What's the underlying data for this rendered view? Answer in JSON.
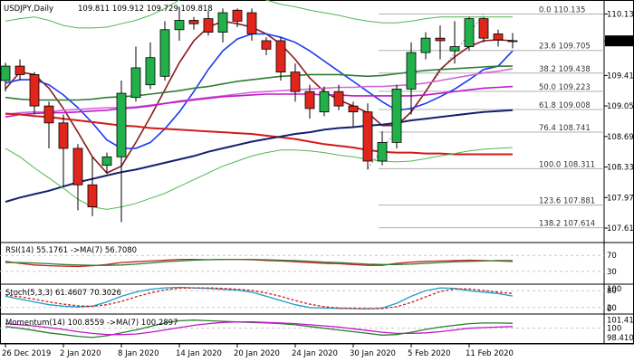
{
  "header": {
    "symbol": "USDJPY,Daily",
    "ohlc": "109.811 109.912 109.729 109.818"
  },
  "current_price": "109.818",
  "colors": {
    "bull": "#22b04b",
    "bear": "#e0251c",
    "wick": "#000000",
    "ma_blue": "#1a3cf0",
    "ma_brown": "#8b1a1a",
    "ma_green": "#2e7d32",
    "ma_navy": "#142070",
    "ma_red": "#d21a1a",
    "ma_pink": "#d06ad8",
    "ma_purple": "#c018c8",
    "bb_band": "#50b850",
    "fib_line": "#b0b0b0",
    "rsi": "#cc1f1f",
    "rsi_ma": "#2e7d32",
    "stoch_k": "#1aa0c8",
    "stoch_d": "#cc1f1f",
    "mom": "#2e7d32",
    "mom_ma": "#c018c8",
    "axis": "#000000",
    "grid": "#c8c8c8"
  },
  "chart_data": [
    {
      "type": "candlestick",
      "panel": "price",
      "ylim": [
        107.45,
        110.3
      ],
      "y_ticks": [
        "110.135",
        "109.818",
        "109.410",
        "109.050",
        "108.690",
        "108.330",
        "107.970",
        "107.610"
      ],
      "x_labels": [
        {
          "i": 0,
          "label": "26 Dec 2019"
        },
        {
          "i": 4,
          "label": "2 Jan 2020"
        },
        {
          "i": 8,
          "label": "8 Jan 2020"
        },
        {
          "i": 12,
          "label": "14 Jan 2020"
        },
        {
          "i": 16,
          "label": "20 Jan 2020"
        },
        {
          "i": 20,
          "label": "24 Jan 2020"
        },
        {
          "i": 24,
          "label": "30 Jan 2020"
        },
        {
          "i": 28,
          "label": "5 Feb 2020"
        },
        {
          "i": 32,
          "label": "11 Feb 2020"
        }
      ],
      "candles": [
        {
          "o": 109.35,
          "h": 109.56,
          "l": 109.22,
          "c": 109.52
        },
        {
          "o": 109.52,
          "h": 109.6,
          "l": 109.35,
          "c": 109.42
        },
        {
          "o": 109.42,
          "h": 109.45,
          "l": 108.95,
          "c": 109.05
        },
        {
          "o": 109.05,
          "h": 109.1,
          "l": 108.55,
          "c": 108.85
        },
        {
          "o": 108.85,
          "h": 108.95,
          "l": 108.1,
          "c": 108.55
        },
        {
          "o": 108.55,
          "h": 108.6,
          "l": 107.82,
          "c": 108.12
        },
        {
          "o": 108.12,
          "h": 108.45,
          "l": 107.75,
          "c": 107.86
        },
        {
          "o": 108.35,
          "h": 108.5,
          "l": 108.25,
          "c": 108.45
        },
        {
          "o": 108.45,
          "h": 109.35,
          "l": 107.68,
          "c": 109.2
        },
        {
          "o": 109.15,
          "h": 109.75,
          "l": 109.1,
          "c": 109.5
        },
        {
          "o": 109.3,
          "h": 109.8,
          "l": 109.25,
          "c": 109.62
        },
        {
          "o": 109.4,
          "h": 110.05,
          "l": 109.35,
          "c": 109.95
        },
        {
          "o": 109.95,
          "h": 110.22,
          "l": 109.82,
          "c": 110.06
        },
        {
          "o": 110.06,
          "h": 110.1,
          "l": 109.95,
          "c": 110.02
        },
        {
          "o": 110.08,
          "h": 110.17,
          "l": 109.88,
          "c": 109.92
        },
        {
          "o": 109.92,
          "h": 110.2,
          "l": 109.8,
          "c": 110.15
        },
        {
          "o": 110.18,
          "h": 110.2,
          "l": 109.98,
          "c": 110.05
        },
        {
          "o": 110.15,
          "h": 110.2,
          "l": 109.82,
          "c": 109.9
        },
        {
          "o": 109.82,
          "h": 109.86,
          "l": 109.65,
          "c": 109.72
        },
        {
          "o": 109.82,
          "h": 109.86,
          "l": 109.35,
          "c": 109.45
        },
        {
          "o": 109.45,
          "h": 109.55,
          "l": 109.1,
          "c": 109.22
        },
        {
          "o": 109.22,
          "h": 109.3,
          "l": 108.9,
          "c": 109.02
        },
        {
          "o": 108.98,
          "h": 109.28,
          "l": 108.93,
          "c": 109.22
        },
        {
          "o": 109.22,
          "h": 109.3,
          "l": 109.0,
          "c": 109.05
        },
        {
          "o": 109.05,
          "h": 109.1,
          "l": 108.8,
          "c": 108.98
        },
        {
          "o": 108.98,
          "h": 109.08,
          "l": 108.3,
          "c": 108.4
        },
        {
          "o": 108.4,
          "h": 108.75,
          "l": 108.35,
          "c": 108.62
        },
        {
          "o": 108.62,
          "h": 109.3,
          "l": 108.55,
          "c": 109.25
        },
        {
          "o": 109.25,
          "h": 109.8,
          "l": 108.95,
          "c": 109.68
        },
        {
          "o": 109.68,
          "h": 109.92,
          "l": 109.6,
          "c": 109.85
        },
        {
          "o": 109.85,
          "h": 110.0,
          "l": 109.6,
          "c": 109.82
        },
        {
          "o": 109.7,
          "h": 110.05,
          "l": 109.55,
          "c": 109.75
        },
        {
          "o": 109.75,
          "h": 110.1,
          "l": 109.7,
          "c": 110.08
        },
        {
          "o": 110.08,
          "h": 110.1,
          "l": 109.8,
          "c": 109.85
        },
        {
          "o": 109.9,
          "h": 109.95,
          "l": 109.75,
          "c": 109.83
        },
        {
          "o": 109.81,
          "h": 109.91,
          "l": 109.73,
          "c": 109.82
        }
      ],
      "overlays": [
        {
          "key": "ma_brown",
          "values": [
            109.25,
            109.45,
            109.42,
            109.26,
            109.02,
            108.74,
            108.45,
            108.26,
            108.34,
            108.62,
            108.92,
            109.24,
            109.56,
            109.82,
            109.98,
            110.05,
            110.02,
            109.98,
            109.9,
            109.78,
            109.6,
            109.38,
            109.22,
            109.12,
            109.05,
            108.97,
            108.82,
            108.82,
            108.98,
            109.22,
            109.48,
            109.63,
            109.75,
            109.82,
            109.83,
            109.82
          ]
        },
        {
          "key": "ma_blue",
          "values": [
            109.32,
            109.36,
            109.36,
            109.3,
            109.18,
            109.03,
            108.85,
            108.65,
            108.55,
            108.55,
            108.62,
            108.78,
            108.98,
            109.22,
            109.48,
            109.7,
            109.84,
            109.9,
            109.9,
            109.86,
            109.8,
            109.7,
            109.58,
            109.46,
            109.34,
            109.22,
            109.1,
            109.0,
            109.02,
            109.08,
            109.16,
            109.25,
            109.36,
            109.48,
            109.52,
            109.7
          ]
        },
        {
          "key": "ma_green",
          "values": [
            109.15,
            109.13,
            109.12,
            109.12,
            109.12,
            109.12,
            109.13,
            109.15,
            109.16,
            109.17,
            109.19,
            109.21,
            109.23,
            109.26,
            109.28,
            109.31,
            109.34,
            109.36,
            109.38,
            109.4,
            109.41,
            109.42,
            109.42,
            109.42,
            109.41,
            109.4,
            109.41,
            109.43,
            109.45,
            109.47,
            109.48,
            109.49,
            109.5,
            109.51,
            109.52,
            109.52
          ]
        },
        {
          "key": "ma_pink",
          "values": [
            108.95,
            108.97,
            108.98,
            108.98,
            109.0,
            109.01,
            109.02,
            109.03,
            109.03,
            109.04,
            109.06,
            109.08,
            109.11,
            109.13,
            109.15,
            109.17,
            109.19,
            109.21,
            109.22,
            109.23,
            109.24,
            109.25,
            109.26,
            109.27,
            109.27,
            109.28,
            109.28,
            109.29,
            109.3,
            109.32,
            109.35,
            109.38,
            109.41,
            109.44,
            109.46,
            109.49
          ]
        },
        {
          "key": "ma_purple",
          "values": [
            108.92,
            108.95,
            108.96,
            108.97,
            108.97,
            108.98,
            108.99,
            109.0,
            109.02,
            109.03,
            109.05,
            109.08,
            109.1,
            109.12,
            109.14,
            109.16,
            109.17,
            109.18,
            109.19,
            109.19,
            109.19,
            109.19,
            109.18,
            109.18,
            109.17,
            109.17,
            109.17,
            109.17,
            109.17,
            109.18,
            109.2,
            109.22,
            109.24,
            109.26,
            109.27,
            109.28
          ]
        },
        {
          "key": "ma_red",
          "values": [
            108.96,
            108.95,
            108.93,
            108.92,
            108.9,
            108.88,
            108.86,
            108.84,
            108.82,
            108.81,
            108.79,
            108.78,
            108.77,
            108.76,
            108.75,
            108.74,
            108.73,
            108.72,
            108.7,
            108.68,
            108.66,
            108.63,
            108.6,
            108.58,
            108.56,
            108.53,
            108.51,
            108.5,
            108.5,
            108.49,
            108.49,
            108.48,
            108.48,
            108.48,
            108.48,
            108.48
          ]
        },
        {
          "key": "ma_navy",
          "values": [
            107.92,
            107.97,
            108.01,
            108.05,
            108.1,
            108.15,
            108.19,
            108.23,
            108.27,
            108.3,
            108.34,
            108.38,
            108.42,
            108.46,
            108.51,
            108.55,
            108.59,
            108.63,
            108.66,
            108.69,
            108.72,
            108.74,
            108.77,
            108.79,
            108.8,
            108.82,
            108.83,
            108.85,
            108.88,
            108.9,
            108.92,
            108.94,
            108.96,
            108.98,
            108.99,
            109.0
          ]
        },
        {
          "key": "bb_band",
          "values": [
            110.05,
            110.08,
            110.1,
            110.06,
            110.0,
            109.97,
            109.97,
            109.98,
            110.02,
            110.06,
            110.12,
            110.2,
            110.3,
            110.38,
            110.42,
            110.42,
            110.4,
            110.36,
            110.3,
            110.25,
            110.22,
            110.18,
            110.15,
            110.12,
            110.08,
            110.05,
            110.03,
            110.03,
            110.05,
            110.08,
            110.1,
            110.1,
            110.1,
            110.1,
            110.1,
            110.1
          ]
        },
        {
          "key": "bb_band",
          "values": [
            108.55,
            108.45,
            108.32,
            108.2,
            108.08,
            107.95,
            107.86,
            107.83,
            107.86,
            107.9,
            107.96,
            108.02,
            108.1,
            108.18,
            108.26,
            108.34,
            108.4,
            108.46,
            108.5,
            108.53,
            108.53,
            108.52,
            108.5,
            108.47,
            108.45,
            108.42,
            108.4,
            108.39,
            108.4,
            108.43,
            108.46,
            108.49,
            108.52,
            108.54,
            108.55,
            108.56
          ]
        }
      ],
      "fib_levels": [
        {
          "label": "0.0 110.135",
          "v": 110.135
        },
        {
          "label": "23.6 109.705",
          "v": 109.705
        },
        {
          "label": "38.2 109.438",
          "v": 109.438
        },
        {
          "label": "50.0 109.223",
          "v": 109.223
        },
        {
          "label": "61.8 109.008",
          "v": 109.008
        },
        {
          "label": "76.4 108.741",
          "v": 108.741
        },
        {
          "label": "100.0 108.311",
          "v": 108.311
        },
        {
          "label": "123.6 107.881",
          "v": 107.881
        },
        {
          "label": "138.2 107.614",
          "v": 107.614
        }
      ]
    },
    {
      "type": "line",
      "panel": "rsi",
      "title": "RSI(14) 55.1761 ->MA(7) 56.7080",
      "ylim": [
        0,
        100
      ],
      "y_ticks": [
        "70",
        "30"
      ],
      "series": [
        {
          "key": "rsi",
          "values": [
            55,
            50,
            46,
            44,
            43,
            42,
            44,
            47,
            52,
            54,
            56,
            58,
            60,
            60,
            59,
            60,
            60,
            59,
            57,
            56,
            54,
            52,
            50,
            49,
            47,
            45,
            45,
            50,
            53,
            55,
            56,
            57,
            58,
            57,
            56,
            55
          ]
        },
        {
          "key": "rsi_ma",
          "values": [
            52,
            52,
            51,
            49,
            47,
            46,
            45,
            45,
            46,
            48,
            51,
            54,
            56,
            58,
            59,
            60,
            60,
            60,
            59,
            58,
            57,
            55,
            53,
            52,
            50,
            48,
            47,
            47,
            48,
            50,
            52,
            54,
            55,
            56,
            57,
            57
          ]
        }
      ]
    },
    {
      "type": "line",
      "panel": "stoch",
      "title": "Stoch(5,3,3) 61.4607 70.3026",
      "ylim": [
        0,
        100
      ],
      "y_ticks": [
        "100",
        "80",
        "20",
        "0"
      ],
      "series": [
        {
          "key": "stoch_k",
          "values": [
            60,
            50,
            40,
            30,
            25,
            22,
            25,
            40,
            60,
            75,
            85,
            90,
            92,
            90,
            88,
            85,
            82,
            75,
            60,
            45,
            30,
            20,
            18,
            17,
            16,
            15,
            18,
            35,
            60,
            80,
            90,
            88,
            80,
            75,
            70,
            61
          ]
        },
        {
          "key": "stoch_d",
          "values": [
            65,
            58,
            50,
            40,
            32,
            26,
            24,
            30,
            42,
            58,
            72,
            83,
            89,
            90,
            90,
            88,
            85,
            81,
            72,
            60,
            45,
            32,
            23,
            18,
            17,
            16,
            16,
            23,
            38,
            58,
            77,
            86,
            86,
            81,
            75,
            70
          ]
        }
      ]
    },
    {
      "type": "line",
      "panel": "momentum",
      "title": "Momentum(14) 100.8559 ->MA(7) 100.2897",
      "ylim": [
        97.6,
        102.3
      ],
      "y_ticks": [
        "101.4179",
        "100",
        "98.4107"
      ],
      "series": [
        {
          "key": "mom",
          "values": [
            100.3,
            100.0,
            99.6,
            99.2,
            98.9,
            98.6,
            98.4,
            98.7,
            99.2,
            99.7,
            100.3,
            100.9,
            101.3,
            101.4,
            101.3,
            101.2,
            101.1,
            101.0,
            100.9,
            100.8,
            100.6,
            100.3,
            100.0,
            99.7,
            99.4,
            99.1,
            98.8,
            98.9,
            99.3,
            99.8,
            100.2,
            100.5,
            100.8,
            100.9,
            100.9,
            100.86
          ]
        },
        {
          "key": "mom_ma",
          "values": [
            100.8,
            100.6,
            100.4,
            100.1,
            99.8,
            99.4,
            99.1,
            98.9,
            98.9,
            99.0,
            99.3,
            99.7,
            100.1,
            100.5,
            100.8,
            101.0,
            101.1,
            101.1,
            101.0,
            100.9,
            100.8,
            100.6,
            100.4,
            100.2,
            99.9,
            99.6,
            99.3,
            99.1,
            99.1,
            99.2,
            99.4,
            99.7,
            100.0,
            100.1,
            100.2,
            100.29
          ]
        }
      ]
    }
  ]
}
